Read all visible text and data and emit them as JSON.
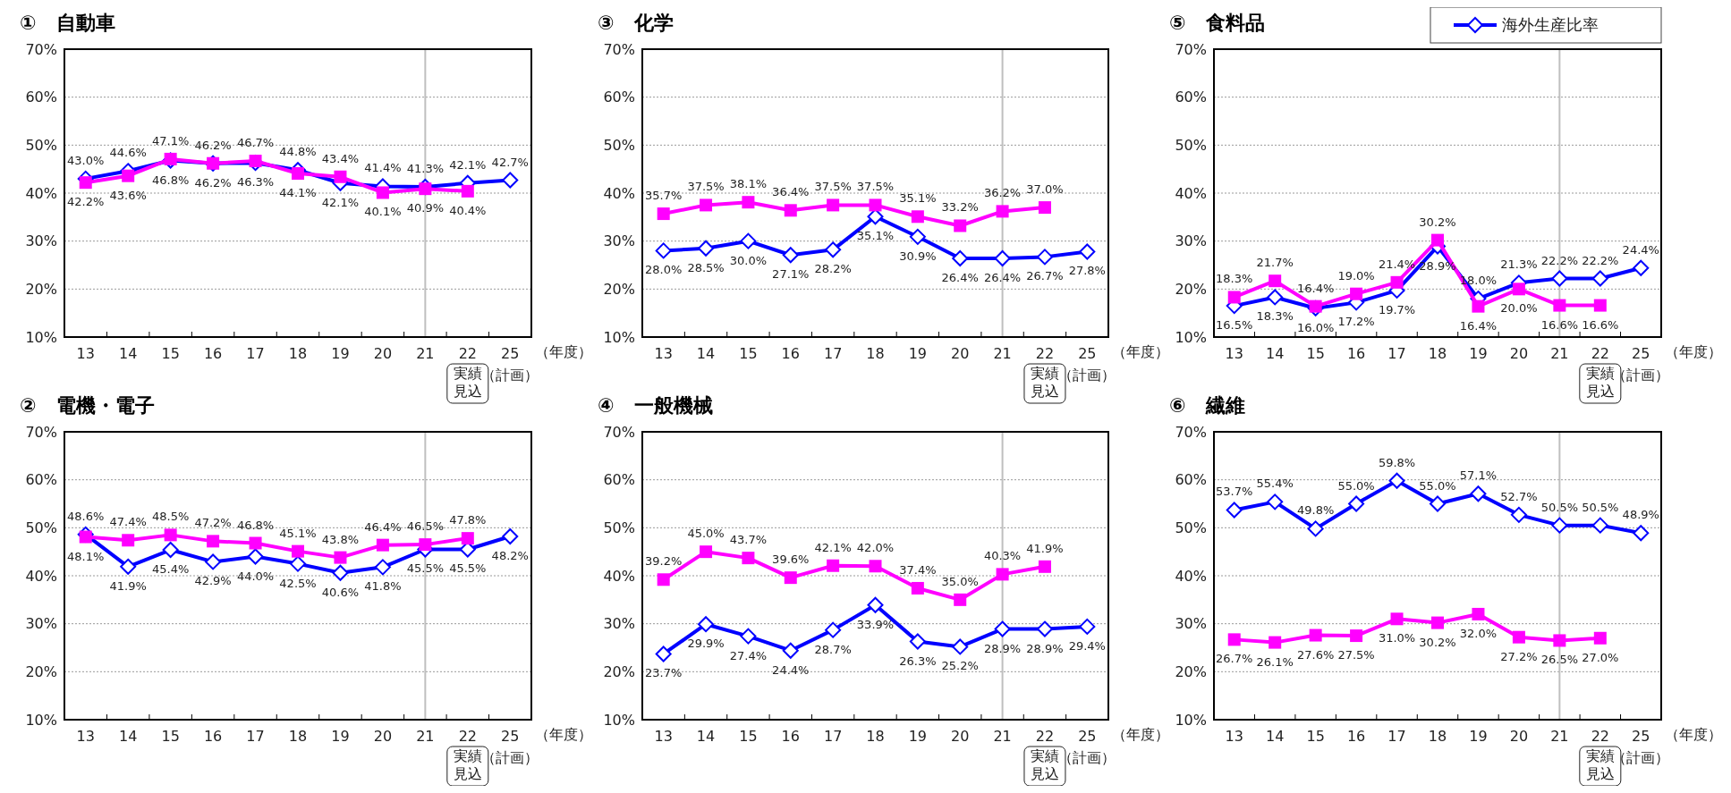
{
  "chart_data": [
    {
      "type": "line",
      "title": "①　自動車",
      "categories": [
        "13",
        "14",
        "15",
        "16",
        "17",
        "18",
        "19",
        "20",
        "21",
        "22",
        "25"
      ],
      "xlabel": "（年度）",
      "ylim": [
        10,
        70
      ],
      "yticks": [
        {
          "value": 10,
          "label": "10%"
        },
        {
          "value": 20,
          "label": "20%"
        },
        {
          "value": 30,
          "label": "30%"
        },
        {
          "value": 40,
          "label": "40%"
        },
        {
          "value": 50,
          "label": "50%"
        },
        {
          "value": 60,
          "label": "60%"
        },
        {
          "value": 70,
          "label": "70%"
        }
      ],
      "grid": "y",
      "line_style": "solid",
      "ref_lines": [
        {
          "axis": "x",
          "value": "21",
          "color": "#bfbfbf"
        }
      ],
      "annotations": [
        "実績見込",
        "（計画）"
      ],
      "series": [
        {
          "color": "#0000ff",
          "marker": "diamond",
          "values": [
            43.0,
            44.6,
            46.8,
            46.2,
            46.3,
            44.8,
            42.1,
            41.4,
            41.3,
            42.1,
            42.7
          ],
          "value_labels": [
            "43.0%",
            "44.6%",
            "46.8%",
            "46.2%",
            "46.3%",
            "44.8%",
            "42.1%",
            "41.4%",
            "41.3%",
            "42.1%",
            "42.7%"
          ]
        },
        {
          "color": "#ff00ff",
          "marker": "square",
          "values": [
            42.2,
            43.6,
            47.1,
            46.2,
            46.7,
            44.1,
            43.4,
            40.1,
            40.9,
            40.4,
            null
          ],
          "value_labels": [
            "42.2%",
            "43.6%",
            "47.1%",
            "46.2%",
            "46.7%",
            "44.1%",
            "43.4%",
            "40.1%",
            "40.9%",
            "40.4%",
            null
          ]
        }
      ]
    },
    {
      "type": "line",
      "title": "③　化学",
      "categories": [
        "13",
        "14",
        "15",
        "16",
        "17",
        "18",
        "19",
        "20",
        "21",
        "22",
        "25"
      ],
      "xlabel": "（年度）",
      "ylim": [
        10,
        70
      ],
      "yticks": [
        {
          "value": 10,
          "label": "10%"
        },
        {
          "value": 20,
          "label": "20%"
        },
        {
          "value": 30,
          "label": "30%"
        },
        {
          "value": 40,
          "label": "40%"
        },
        {
          "value": 50,
          "label": "50%"
        },
        {
          "value": 60,
          "label": "60%"
        },
        {
          "value": 70,
          "label": "70%"
        }
      ],
      "grid": "y",
      "line_style": "solid",
      "ref_lines": [
        {
          "axis": "x",
          "value": "21",
          "color": "#bfbfbf"
        }
      ],
      "annotations": [
        "実績見込",
        "（計画）"
      ],
      "series": [
        {
          "color": "#0000ff",
          "marker": "diamond",
          "values": [
            28.0,
            28.5,
            30.0,
            27.1,
            28.2,
            35.1,
            30.9,
            26.4,
            26.4,
            26.7,
            27.8
          ],
          "value_labels": [
            "28.0%",
            "28.5%",
            "30.0%",
            "27.1%",
            "28.2%",
            "35.1%",
            "30.9%",
            "26.4%",
            "26.4%",
            "26.7%",
            "27.8%"
          ]
        },
        {
          "color": "#ff00ff",
          "marker": "square",
          "values": [
            35.7,
            37.5,
            38.1,
            36.4,
            37.5,
            37.5,
            35.1,
            33.2,
            36.2,
            37.0,
            null
          ],
          "value_labels": [
            "35.7%",
            "37.5%",
            "38.1%",
            "36.4%",
            "37.5%",
            "37.5%",
            "35.1%",
            "33.2%",
            "36.2%",
            "37.0%",
            null
          ]
        }
      ]
    },
    {
      "type": "line",
      "title": "⑤　食料品",
      "categories": [
        "13",
        "14",
        "15",
        "16",
        "17",
        "18",
        "19",
        "20",
        "21",
        "22",
        "25"
      ],
      "xlabel": "（年度）",
      "ylim": [
        10,
        70
      ],
      "yticks": [
        {
          "value": 10,
          "label": "10%"
        },
        {
          "value": 20,
          "label": "20%"
        },
        {
          "value": 30,
          "label": "30%"
        },
        {
          "value": 40,
          "label": "40%"
        },
        {
          "value": 50,
          "label": "50%"
        },
        {
          "value": 60,
          "label": "60%"
        },
        {
          "value": 70,
          "label": "70%"
        }
      ],
      "grid": "y",
      "line_style": "solid",
      "legend": "top right",
      "ref_lines": [
        {
          "axis": "x",
          "value": "21",
          "color": "#bfbfbf"
        }
      ],
      "annotations": [
        "実績見込",
        "（計画）"
      ],
      "series": [
        {
          "name": "海外生産比率",
          "color": "#0000ff",
          "marker": "diamond",
          "values": [
            16.5,
            18.3,
            16.0,
            17.2,
            19.7,
            28.9,
            18.0,
            21.3,
            22.2,
            22.2,
            24.4
          ],
          "value_labels": [
            "16.5%",
            "18.3%",
            "16.0%",
            "17.2%",
            "19.7%",
            "28.9%",
            "18.0%",
            "21.3%",
            "22.2%",
            "22.2%",
            "24.4%"
          ]
        },
        {
          "color": "#ff00ff",
          "marker": "square",
          "values": [
            18.3,
            21.7,
            16.4,
            19.0,
            21.4,
            30.2,
            16.4,
            20.0,
            16.6,
            16.6,
            null
          ],
          "value_labels": [
            "18.3%",
            "21.7%",
            "16.4%",
            "19.0%",
            "21.4%",
            "30.2%",
            "16.4%",
            "20.0%",
            "16.6%",
            "16.6%",
            null
          ]
        }
      ]
    },
    {
      "type": "line",
      "title": "②　電機・電子",
      "categories": [
        "13",
        "14",
        "15",
        "16",
        "17",
        "18",
        "19",
        "20",
        "21",
        "22",
        "25"
      ],
      "xlabel": "（年度）",
      "ylim": [
        10,
        70
      ],
      "yticks": [
        {
          "value": 10,
          "label": "10%"
        },
        {
          "value": 20,
          "label": "20%"
        },
        {
          "value": 30,
          "label": "30%"
        },
        {
          "value": 40,
          "label": "40%"
        },
        {
          "value": 50,
          "label": "50%"
        },
        {
          "value": 60,
          "label": "60%"
        },
        {
          "value": 70,
          "label": "70%"
        }
      ],
      "grid": "y",
      "line_style": "solid",
      "ref_lines": [
        {
          "axis": "x",
          "value": "21",
          "color": "#bfbfbf"
        }
      ],
      "annotations": [
        "実績見込",
        "（計画）"
      ],
      "series": [
        {
          "color": "#0000ff",
          "marker": "diamond",
          "values": [
            48.6,
            41.9,
            45.4,
            42.9,
            44.0,
            42.5,
            40.6,
            41.8,
            45.5,
            45.5,
            48.2
          ],
          "value_labels": [
            "48.6%",
            "41.9%",
            "45.4%",
            "42.9%",
            "44.0%",
            "42.5%",
            "40.6%",
            "41.8%",
            "45.5%",
            "45.5%",
            "48.2%"
          ]
        },
        {
          "color": "#ff00ff",
          "marker": "square",
          "values": [
            48.1,
            47.4,
            48.5,
            47.2,
            46.8,
            45.1,
            43.8,
            46.4,
            46.5,
            47.8,
            null
          ],
          "value_labels": [
            "48.1%",
            "47.4%",
            "48.5%",
            "47.2%",
            "46.8%",
            "45.1%",
            "43.8%",
            "46.4%",
            "46.5%",
            "47.8%",
            null
          ]
        }
      ]
    },
    {
      "type": "line",
      "title": "④　一般機械",
      "categories": [
        "13",
        "14",
        "15",
        "16",
        "17",
        "18",
        "19",
        "20",
        "21",
        "22",
        "25"
      ],
      "xlabel": "（年度）",
      "ylim": [
        10,
        70
      ],
      "yticks": [
        {
          "value": 10,
          "label": "10%"
        },
        {
          "value": 20,
          "label": "20%"
        },
        {
          "value": 30,
          "label": "30%"
        },
        {
          "value": 40,
          "label": "40%"
        },
        {
          "value": 50,
          "label": "50%"
        },
        {
          "value": 60,
          "label": "60%"
        },
        {
          "value": 70,
          "label": "70%"
        }
      ],
      "grid": "y",
      "line_style": "solid",
      "ref_lines": [
        {
          "axis": "x",
          "value": "21",
          "color": "#bfbfbf"
        }
      ],
      "annotations": [
        "実績見込",
        "（計画）"
      ],
      "series": [
        {
          "color": "#0000ff",
          "marker": "diamond",
          "values": [
            23.7,
            29.9,
            27.4,
            24.4,
            28.7,
            33.9,
            26.3,
            25.2,
            28.9,
            28.9,
            29.4
          ],
          "value_labels": [
            "23.7%",
            "29.9%",
            "27.4%",
            "24.4%",
            "28.7%",
            "33.9%",
            "26.3%",
            "25.2%",
            "28.9%",
            "28.9%",
            "29.4%"
          ]
        },
        {
          "color": "#ff00ff",
          "marker": "square",
          "values": [
            39.2,
            45.0,
            43.7,
            39.6,
            42.1,
            42.0,
            37.4,
            35.0,
            40.3,
            41.9,
            null
          ],
          "value_labels": [
            "39.2%",
            "45.0%",
            "43.7%",
            "39.6%",
            "42.1%",
            "42.0%",
            "37.4%",
            "35.0%",
            "40.3%",
            "41.9%",
            null
          ]
        }
      ]
    },
    {
      "type": "line",
      "title": "⑥　繊維",
      "categories": [
        "13",
        "14",
        "15",
        "16",
        "17",
        "18",
        "19",
        "20",
        "21",
        "22",
        "25"
      ],
      "xlabel": "（年度）",
      "ylim": [
        10,
        70
      ],
      "yticks": [
        {
          "value": 10,
          "label": "10%"
        },
        {
          "value": 20,
          "label": "20%"
        },
        {
          "value": 30,
          "label": "30%"
        },
        {
          "value": 40,
          "label": "40%"
        },
        {
          "value": 50,
          "label": "50%"
        },
        {
          "value": 60,
          "label": "60%"
        },
        {
          "value": 70,
          "label": "70%"
        }
      ],
      "grid": "y",
      "line_style": "solid",
      "ref_lines": [
        {
          "axis": "x",
          "value": "21",
          "color": "#bfbfbf"
        }
      ],
      "annotations": [
        "実績見込",
        "（計画）"
      ],
      "series": [
        {
          "color": "#0000ff",
          "marker": "diamond",
          "values": [
            53.7,
            55.4,
            49.8,
            55.0,
            59.8,
            55.0,
            57.1,
            52.7,
            50.5,
            50.5,
            48.9
          ],
          "value_labels": [
            "53.7%",
            "55.4%",
            "49.8%",
            "55.0%",
            "59.8%",
            "55.0%",
            "57.1%",
            "52.7%",
            "50.5%",
            "50.5%",
            "48.9%"
          ]
        },
        {
          "color": "#ff00ff",
          "marker": "square",
          "values": [
            26.7,
            26.1,
            27.6,
            27.5,
            31.0,
            30.2,
            32.0,
            27.2,
            26.5,
            27.0,
            null
          ],
          "value_labels": [
            "26.7%",
            "26.1%",
            "27.6%",
            "27.5%",
            "31.0%",
            "30.2%",
            "32.0%",
            "27.2%",
            "26.5%",
            "27.0%",
            null
          ]
        }
      ]
    }
  ]
}
